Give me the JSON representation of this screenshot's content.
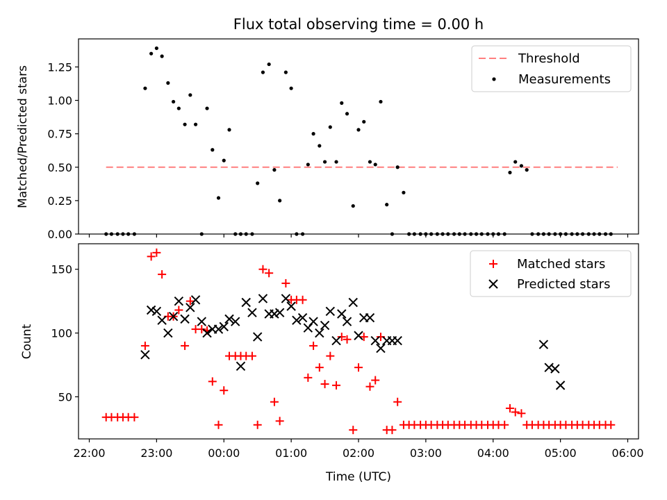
{
  "chart_data": {
    "type": "scatter",
    "title": "Flux total observing time = 0.00 h",
    "x_tick_labels": [
      "22:00",
      "23:00",
      "00:00",
      "01:00",
      "02:00",
      "03:00",
      "04:00",
      "05:00",
      "06:00"
    ],
    "xlabel": "Time (UTC)",
    "x_unit": "hours since 22:00 UTC",
    "xlim": [
      -0.16,
      8.16
    ],
    "colors": {
      "threshold": "#ff7f7f",
      "measurements": "#000000",
      "matched": "#ff0000",
      "predicted": "#000000"
    },
    "top": {
      "ylabel": "Matched/Predicted stars",
      "ylim": [
        0,
        1.46
      ],
      "y_ticks": [
        0.0,
        0.25,
        0.5,
        0.75,
        1.0,
        1.25
      ],
      "y_tick_labels": [
        "0.00",
        "0.25",
        "0.50",
        "0.75",
        "1.00",
        "1.25"
      ],
      "legend": {
        "position": "top-right",
        "entries": [
          "Threshold",
          "Measurements"
        ]
      },
      "threshold": {
        "name": "Threshold",
        "y": 0.5,
        "x": [
          0.25,
          7.85
        ]
      },
      "measurements": {
        "name": "Measurements",
        "x": [
          0.25,
          0.33,
          0.42,
          0.5,
          0.58,
          0.67,
          0.83,
          0.92,
          1.0,
          1.08,
          1.17,
          1.25,
          1.33,
          1.42,
          1.5,
          1.58,
          1.67,
          1.75,
          1.83,
          1.92,
          2.0,
          2.08,
          2.17,
          2.25,
          2.33,
          2.42,
          2.5,
          2.58,
          2.67,
          2.75,
          2.83,
          2.92,
          3.0,
          3.08,
          3.17,
          3.25,
          3.33,
          3.42,
          3.5,
          3.58,
          3.67,
          3.75,
          3.83,
          3.92,
          4.0,
          4.08,
          4.17,
          4.25,
          4.33,
          4.42,
          4.5,
          4.58,
          4.67,
          4.75,
          4.83,
          4.92,
          5.0,
          5.08,
          5.17,
          5.25,
          5.33,
          5.42,
          5.5,
          5.58,
          5.67,
          5.75,
          5.83,
          5.92,
          6.0,
          6.08,
          6.17,
          6.25,
          6.33,
          6.42,
          6.5,
          6.58,
          6.67,
          6.75,
          6.83,
          6.92,
          7.0,
          7.08,
          7.17,
          7.25,
          7.33,
          7.42,
          7.5,
          7.58,
          7.67,
          7.75
        ],
        "y": [
          0,
          0,
          0,
          0,
          0,
          0,
          1.09,
          1.35,
          1.39,
          1.33,
          1.13,
          0.99,
          0.94,
          0.82,
          1.04,
          0.82,
          0,
          0.94,
          0.63,
          0.27,
          0.55,
          0.78,
          0,
          0,
          0,
          0,
          0.38,
          1.21,
          1.27,
          0.48,
          0.25,
          1.21,
          1.09,
          0,
          0,
          0.52,
          0.75,
          0.66,
          0.54,
          0.8,
          0.54,
          0.98,
          0.9,
          0.21,
          0.78,
          0.84,
          0.54,
          0.52,
          0.99,
          0.22,
          0,
          0.5,
          0.31,
          0,
          0,
          0,
          0,
          0,
          0,
          0,
          0,
          0,
          0,
          0,
          0,
          0,
          0,
          0,
          0,
          0,
          0,
          0.46,
          0.54,
          0.51,
          0.48,
          0,
          0,
          0,
          0,
          0,
          0,
          0,
          0,
          0,
          0,
          0,
          0,
          0,
          0,
          0
        ]
      }
    },
    "bottom": {
      "ylabel": "Count",
      "ylim": [
        17,
        170
      ],
      "y_ticks": [
        50,
        100,
        150
      ],
      "y_tick_labels": [
        "50",
        "100",
        "150"
      ],
      "legend": {
        "position": "top-right",
        "entries": [
          "Matched stars",
          "Predicted stars"
        ]
      },
      "matched": {
        "name": "Matched stars",
        "x": [
          0.25,
          0.33,
          0.42,
          0.5,
          0.58,
          0.67,
          0.83,
          0.92,
          1.0,
          1.08,
          1.17,
          1.25,
          1.33,
          1.42,
          1.5,
          1.58,
          1.67,
          1.75,
          1.83,
          1.92,
          2.0,
          2.08,
          2.17,
          2.25,
          2.33,
          2.42,
          2.5,
          2.58,
          2.67,
          2.75,
          2.83,
          2.92,
          3.0,
          3.08,
          3.17,
          3.25,
          3.33,
          3.42,
          3.5,
          3.58,
          3.67,
          3.75,
          3.83,
          3.92,
          4.0,
          4.08,
          4.17,
          4.25,
          4.33,
          4.42,
          4.5,
          4.58,
          4.67,
          4.75,
          4.83,
          4.92,
          5.0,
          5.08,
          5.17,
          5.25,
          5.33,
          5.42,
          5.5,
          5.58,
          5.67,
          5.75,
          5.83,
          5.92,
          6.0,
          6.08,
          6.17,
          6.25,
          6.33,
          6.42,
          6.5,
          6.58,
          6.67,
          6.75,
          6.83,
          6.92,
          7.0,
          7.08,
          7.17,
          7.25,
          7.33,
          7.42,
          7.5,
          7.58,
          7.67,
          7.75
        ],
        "y": [
          34,
          34,
          34,
          34,
          34,
          34,
          90,
          160,
          163,
          146,
          113,
          113,
          118,
          90,
          125,
          103,
          103,
          102,
          62,
          28,
          55,
          82,
          82,
          82,
          82,
          82,
          28,
          150,
          147,
          46,
          31,
          139,
          126,
          126,
          126,
          65,
          90,
          73,
          60,
          82,
          59,
          97,
          95,
          24,
          73,
          97,
          58,
          63,
          97,
          24,
          24,
          46,
          28,
          28,
          28,
          28,
          28,
          28,
          28,
          28,
          28,
          28,
          28,
          28,
          28,
          28,
          28,
          28,
          28,
          28,
          28,
          41,
          38,
          37,
          28,
          28,
          28,
          28,
          28,
          28,
          28,
          28,
          28,
          28,
          28,
          28,
          28,
          28,
          28,
          28
        ]
      },
      "predicted": {
        "name": "Predicted stars",
        "x": [
          0.83,
          0.92,
          1.0,
          1.08,
          1.17,
          1.25,
          1.33,
          1.42,
          1.5,
          1.58,
          1.67,
          1.75,
          1.83,
          1.92,
          2.0,
          2.08,
          2.17,
          2.25,
          2.33,
          2.42,
          2.5,
          2.58,
          2.67,
          2.75,
          2.83,
          2.92,
          3.0,
          3.08,
          3.17,
          3.25,
          3.33,
          3.42,
          3.5,
          3.58,
          3.67,
          3.75,
          3.83,
          3.92,
          4.0,
          4.08,
          4.17,
          4.25,
          4.33,
          4.42,
          4.5,
          4.58,
          6.75,
          6.83,
          6.92,
          7.0
        ],
        "y": [
          83,
          118,
          117,
          110,
          100,
          113,
          125,
          111,
          120,
          126,
          109,
          100,
          103,
          103,
          105,
          111,
          109,
          74,
          124,
          116,
          97,
          127,
          115,
          115,
          116,
          127,
          121,
          110,
          112,
          104,
          109,
          100,
          106,
          117,
          94,
          115,
          109,
          124,
          98,
          112,
          112,
          94,
          88,
          94,
          94,
          94,
          91,
          73,
          72,
          59
        ]
      }
    }
  }
}
